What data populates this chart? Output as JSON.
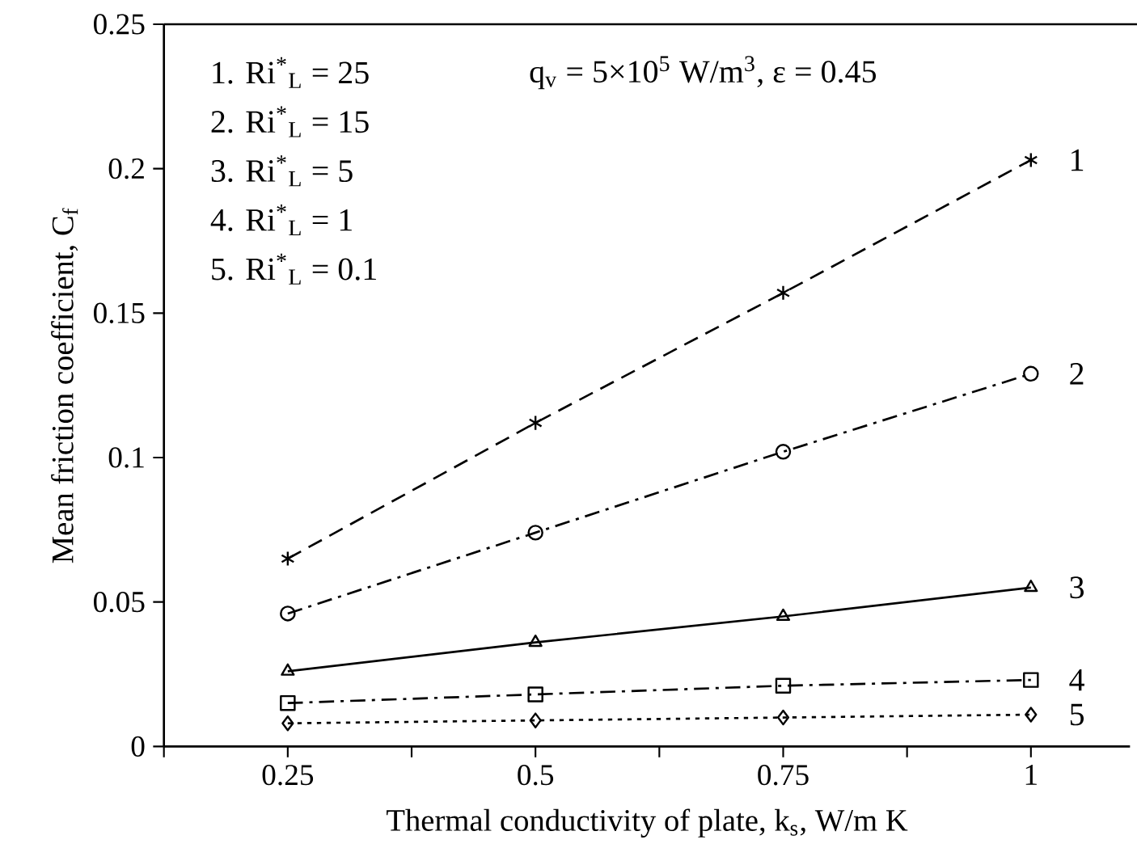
{
  "chart_data": {
    "type": "line",
    "xlabel": "Thermal conductivity of plate, k$_{s}$, W/m K",
    "ylabel": "Mean friction coefficient, C$_{f}$",
    "x": [
      0.25,
      0.5,
      0.75,
      1
    ],
    "series": [
      {
        "name": "1",
        "color": "#000000",
        "marker": "cross",
        "line_style": "dashed",
        "values": [
          0.065,
          0.112,
          0.157,
          0.203
        ]
      },
      {
        "name": "2",
        "color": "#000000",
        "marker": "circle",
        "line_style": "dashdot",
        "values": [
          0.046,
          0.074,
          0.102,
          0.129
        ]
      },
      {
        "name": "3",
        "color": "#000000",
        "marker": "triangle",
        "line_style": "solid",
        "values": [
          0.026,
          0.036,
          0.045,
          0.055
        ]
      },
      {
        "name": "4",
        "color": "#000000",
        "marker": "square",
        "line_style": "dashdot",
        "values": [
          0.015,
          0.018,
          0.021,
          0.023
        ]
      },
      {
        "name": "5",
        "color": "#000000",
        "marker": "diamond",
        "line_style": "dotted",
        "values": [
          0.008,
          0.009,
          0.01,
          0.011
        ]
      }
    ],
    "annotations": [
      "1. Ri$^{*}$$_{L}$ = 25",
      "2. Ri$^{*}$$_{L}$ = 15",
      "3. Ri$^{*}$$_{L}$ = 5",
      "4. Ri$^{*}$$_{L}$ = 1",
      "5. Ri$^{*}$$_{L}$ = 0.1",
      "q$_{v}$ = 5×10$^{5}$ W/m$^{3}$, ε = 0.45"
    ],
    "xlim": [
      0.125,
      1.1
    ],
    "ylim": [
      0,
      0.25
    ],
    "xticks": [
      {
        "value": 0.125,
        "label": null
      },
      0.25,
      {
        "value": 0.375,
        "label": null
      },
      0.5,
      {
        "value": 0.625,
        "label": null
      },
      0.75,
      {
        "value": 0.875,
        "label": null
      },
      1
    ],
    "yticks": [
      0,
      0.05,
      0.1,
      0.15,
      0.2,
      0.25
    ],
    "grid": false
  }
}
